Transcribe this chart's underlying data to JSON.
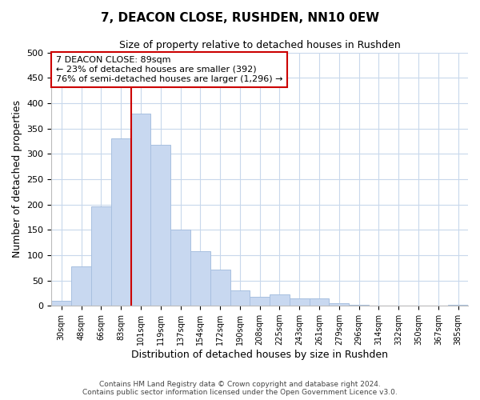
{
  "title": "7, DEACON CLOSE, RUSHDEN, NN10 0EW",
  "subtitle": "Size of property relative to detached houses in Rushden",
  "xlabel": "Distribution of detached houses by size in Rushden",
  "ylabel": "Number of detached properties",
  "footer_line1": "Contains HM Land Registry data © Crown copyright and database right 2024.",
  "footer_line2": "Contains public sector information licensed under the Open Government Licence v3.0.",
  "bar_labels": [
    "30sqm",
    "48sqm",
    "66sqm",
    "83sqm",
    "101sqm",
    "119sqm",
    "137sqm",
    "154sqm",
    "172sqm",
    "190sqm",
    "208sqm",
    "225sqm",
    "243sqm",
    "261sqm",
    "279sqm",
    "296sqm",
    "314sqm",
    "332sqm",
    "350sqm",
    "367sqm",
    "385sqm"
  ],
  "bar_values": [
    10,
    78,
    196,
    330,
    380,
    318,
    150,
    108,
    72,
    30,
    17,
    22,
    15,
    15,
    5,
    2,
    0,
    0,
    0,
    0,
    2
  ],
  "bar_color": "#c8d8f0",
  "bar_edgecolor": "#a8c0e0",
  "vline_color": "#cc0000",
  "annotation_title": "7 DEACON CLOSE: 89sqm",
  "annotation_line1": "← 23% of detached houses are smaller (392)",
  "annotation_line2": "76% of semi-detached houses are larger (1,296) →",
  "annotation_box_edgecolor": "#cc0000",
  "annotation_box_facecolor": "#ffffff",
  "ylim": [
    0,
    500
  ],
  "yticks": [
    0,
    50,
    100,
    150,
    200,
    250,
    300,
    350,
    400,
    450,
    500
  ],
  "figsize": [
    6.0,
    5.0
  ],
  "dpi": 100,
  "bg_color": "#ffffff",
  "grid_color": "#c8d8ec"
}
